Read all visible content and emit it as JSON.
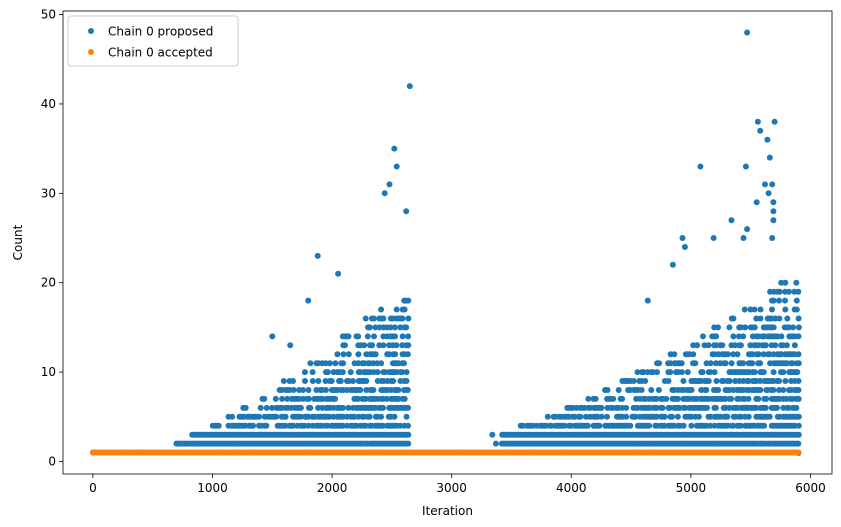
{
  "chart_data": {
    "type": "scatter",
    "title": "",
    "xlabel": "Iteration",
    "ylabel": "Count",
    "xlim": [
      -250,
      6180
    ],
    "ylim": [
      -1.4,
      50.4
    ],
    "xticks": [
      0,
      1000,
      2000,
      3000,
      4000,
      5000,
      6000
    ],
    "yticks": [
      0,
      10,
      20,
      30,
      40,
      50
    ],
    "grid": false,
    "legend_position": "top-left",
    "series": [
      {
        "name": "Chain 0 proposed",
        "color": "#1f77b4",
        "base_points": [
          [
            0,
            1
          ],
          [
            400,
            1
          ],
          [
            700,
            2
          ],
          [
            2650,
            42
          ],
          [
            2620,
            28
          ],
          [
            2520,
            35
          ],
          [
            2540,
            33
          ],
          [
            2480,
            31
          ],
          [
            2440,
            30
          ],
          [
            1880,
            23
          ],
          [
            2050,
            21
          ],
          [
            1500,
            14
          ],
          [
            1650,
            13
          ],
          [
            1800,
            18
          ],
          [
            3340,
            3
          ],
          [
            3370,
            2
          ],
          [
            5470,
            48
          ],
          [
            5560,
            38
          ],
          [
            5700,
            38
          ],
          [
            5580,
            37
          ],
          [
            5640,
            36
          ],
          [
            5660,
            34
          ],
          [
            5080,
            33
          ],
          [
            5460,
            33
          ],
          [
            5620,
            31
          ],
          [
            5680,
            31
          ],
          [
            5650,
            30
          ],
          [
            5550,
            29
          ],
          [
            5690,
            29
          ],
          [
            5690,
            28
          ],
          [
            5690,
            27
          ],
          [
            5340,
            27
          ],
          [
            4930,
            25
          ],
          [
            4950,
            24
          ],
          [
            5190,
            25
          ],
          [
            5440,
            25
          ],
          [
            5680,
            25
          ],
          [
            5470,
            26
          ],
          [
            4850,
            22
          ],
          [
            4640,
            18
          ],
          [
            5900,
            12
          ],
          [
            5890,
            10
          ],
          [
            5900,
            0.95
          ]
        ],
        "bands": [
          {
            "x": [
              700,
              2650
            ],
            "y_min": 2,
            "y_max_start": 2,
            "y_max_end": 20,
            "density": 0.85
          },
          {
            "x": [
              3420,
              5900
            ],
            "y_min": 2,
            "y_max_start": 3,
            "y_max_end": 21,
            "density": 0.85
          }
        ]
      },
      {
        "name": "Chain 0 accepted",
        "color": "#ff7f0e",
        "line": {
          "x": [
            0,
            5900
          ],
          "y": 1
        }
      }
    ]
  }
}
